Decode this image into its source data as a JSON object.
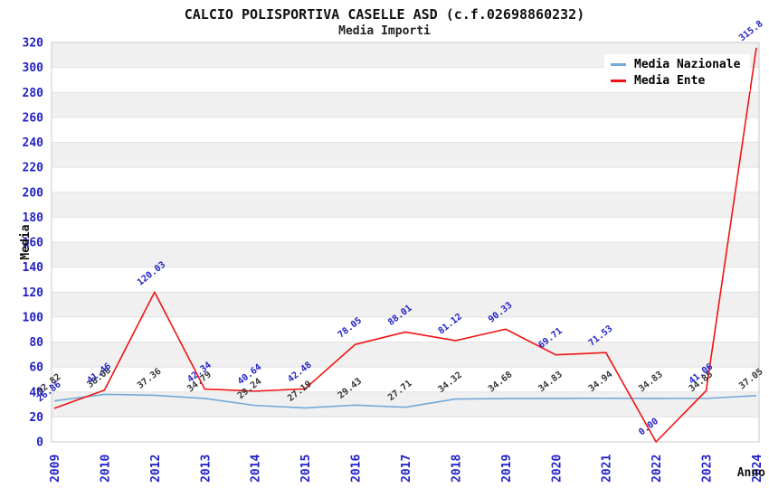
{
  "chart_data": {
    "type": "line",
    "title": "CALCIO POLISPORTIVA CASELLE ASD (c.f.02698860232)",
    "subtitle": "Media Importi",
    "xlabel": "Anno",
    "ylabel": "Media",
    "ylim": [
      0,
      320
    ],
    "yticks": [
      0,
      20,
      40,
      60,
      80,
      100,
      120,
      140,
      160,
      180,
      200,
      220,
      240,
      260,
      280,
      300,
      320
    ],
    "grid": "horizontal-bands-every-20",
    "legend_position": "top-right",
    "categories": [
      "2009",
      "2010",
      "2012",
      "2013",
      "2014",
      "2015",
      "2016",
      "2017",
      "2018",
      "2019",
      "2020",
      "2021",
      "2022",
      "2023",
      "2024"
    ],
    "series": [
      {
        "name": "Media Nazionale",
        "color": "#74a9d8",
        "label_color": "#333333",
        "values": [
          32.82,
          38.08,
          37.36,
          34.79,
          29.24,
          27.19,
          29.43,
          27.71,
          34.32,
          34.68,
          34.83,
          34.94,
          34.83,
          34.85,
          37.05
        ],
        "labels": [
          "32.82",
          "38.08",
          "37.36",
          "34.79",
          "29.24",
          "27.19",
          "29.43",
          "27.71",
          "34.32",
          "34.68",
          "34.83",
          "34.94",
          "34.83",
          "34.85",
          "37.05"
        ]
      },
      {
        "name": "Media Ente",
        "color": "#ee1414",
        "label_color": "#2222c8",
        "values": [
          26.86,
          41.46,
          120.03,
          42.34,
          40.64,
          42.48,
          78.05,
          88.01,
          81.12,
          90.33,
          69.71,
          71.53,
          0.0,
          41.06,
          315.8
        ],
        "labels": [
          "26.86",
          "41.46",
          "120.03",
          "42.34",
          "40.64",
          "42.48",
          "78.05",
          "88.01",
          "81.12",
          "90.33",
          "69.71",
          "71.53",
          "0.00",
          "41.06",
          "315.8"
        ]
      }
    ],
    "colors": {
      "tick_label": "#2222c8",
      "axis_title": "#111111",
      "band": "#f0f0f0",
      "gridline": "#e2e2e2",
      "plot_border": "#c8c8c8",
      "background": "#ffffff"
    }
  }
}
